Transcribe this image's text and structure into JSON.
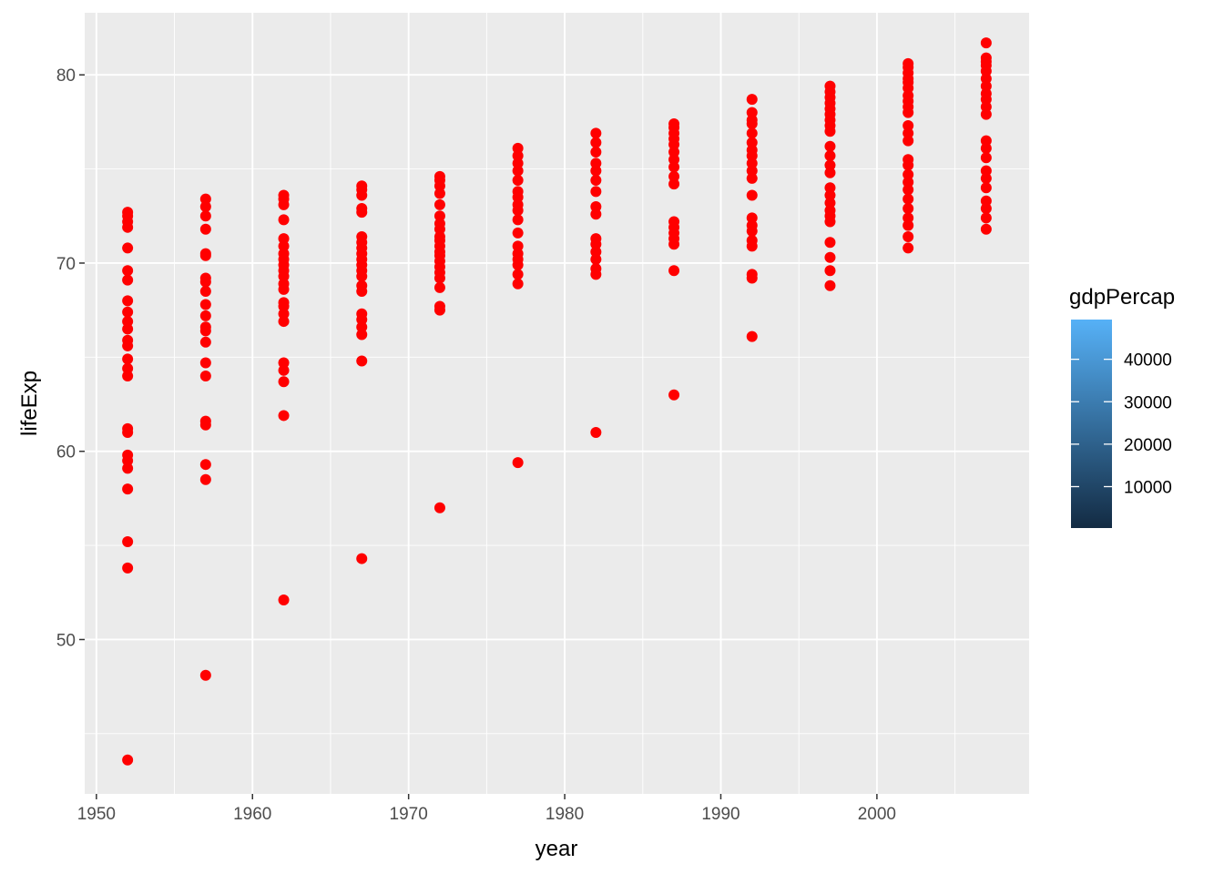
{
  "chart_data": {
    "type": "scatter",
    "title": "",
    "xlabel": "year",
    "ylabel": "lifeExp",
    "xlim": [
      1949.25,
      2009.75
    ],
    "ylim": [
      41.8,
      83.3
    ],
    "x_ticks": [
      1950,
      1960,
      1970,
      1980,
      1990,
      2000
    ],
    "y_ticks": [
      50,
      60,
      70,
      80
    ],
    "grid": true,
    "point_color": "#ff0000",
    "panel_background": "#ebebeb",
    "gridline_color": "#ffffff",
    "series": [
      {
        "x": 1952,
        "y": [
          43.6,
          53.8,
          55.2,
          58.0,
          59.1,
          59.5,
          59.8,
          61.0,
          61.2,
          64.0,
          64.4,
          64.9,
          65.6,
          65.9,
          66.5,
          66.9,
          67.4,
          68.0,
          69.1,
          69.6,
          70.8,
          71.9,
          72.2,
          72.5,
          72.7
        ]
      },
      {
        "x": 1957,
        "y": [
          48.1,
          58.5,
          59.3,
          61.4,
          61.6,
          64.0,
          64.7,
          65.8,
          66.4,
          66.6,
          67.2,
          67.8,
          68.5,
          69.0,
          69.2,
          70.4,
          70.5,
          71.8,
          72.5,
          73.0,
          73.4
        ]
      },
      {
        "x": 1962,
        "y": [
          52.1,
          61.9,
          63.7,
          64.3,
          64.7,
          66.9,
          67.3,
          67.7,
          67.9,
          68.6,
          68.9,
          69.3,
          69.6,
          69.9,
          70.2,
          70.5,
          70.9,
          71.3,
          72.3,
          73.1,
          73.4,
          73.6
        ]
      },
      {
        "x": 1967,
        "y": [
          54.3,
          64.8,
          66.2,
          66.6,
          67.0,
          67.3,
          68.5,
          68.8,
          69.3,
          69.6,
          69.9,
          70.2,
          70.5,
          70.8,
          71.1,
          71.4,
          72.7,
          72.9,
          73.6,
          73.9,
          74.1
        ]
      },
      {
        "x": 1972,
        "y": [
          57.0,
          67.5,
          67.7,
          68.7,
          69.2,
          69.5,
          69.8,
          70.1,
          70.4,
          70.6,
          70.9,
          71.2,
          71.4,
          71.8,
          72.1,
          72.5,
          73.1,
          73.7,
          74.1,
          74.4,
          74.6
        ]
      },
      {
        "x": 1977,
        "y": [
          59.4,
          68.9,
          69.4,
          69.9,
          70.2,
          70.5,
          70.9,
          71.6,
          72.3,
          72.8,
          73.1,
          73.5,
          73.8,
          74.4,
          74.9,
          75.3,
          75.7,
          76.1
        ]
      },
      {
        "x": 1982,
        "y": [
          61.0,
          69.4,
          69.7,
          70.2,
          70.6,
          71.0,
          71.3,
          72.6,
          73.0,
          73.8,
          74.4,
          74.9,
          75.3,
          75.9,
          76.4,
          76.9
        ]
      },
      {
        "x": 1987,
        "y": [
          63.0,
          69.6,
          71.0,
          71.3,
          71.6,
          71.9,
          72.2,
          74.2,
          74.6,
          75.1,
          75.5,
          75.9,
          76.3,
          76.6,
          76.9,
          77.2,
          77.4
        ]
      },
      {
        "x": 1992,
        "y": [
          66.1,
          69.2,
          69.4,
          70.9,
          71.2,
          71.7,
          72.0,
          72.4,
          73.6,
          74.5,
          74.9,
          75.3,
          75.7,
          76.0,
          76.4,
          76.9,
          77.4,
          77.6,
          78.0,
          78.7
        ]
      },
      {
        "x": 1997,
        "y": [
          68.8,
          69.6,
          70.3,
          71.1,
          72.2,
          72.5,
          72.8,
          73.2,
          73.6,
          74.0,
          74.8,
          75.2,
          75.7,
          76.2,
          77.0,
          77.3,
          77.6,
          77.9,
          78.2,
          78.5,
          78.8,
          79.1,
          79.4
        ]
      },
      {
        "x": 2002,
        "y": [
          70.8,
          71.4,
          72.0,
          72.4,
          72.9,
          73.4,
          73.9,
          74.3,
          74.7,
          75.2,
          75.5,
          76.5,
          76.9,
          77.3,
          78.0,
          78.3,
          78.6,
          78.9,
          79.3,
          79.6,
          79.8,
          80.1,
          80.4,
          80.6
        ]
      },
      {
        "x": 2007,
        "y": [
          71.8,
          72.4,
          72.9,
          73.3,
          74.0,
          74.5,
          74.9,
          75.6,
          76.1,
          76.5,
          77.9,
          78.3,
          78.7,
          79.0,
          79.4,
          79.8,
          80.2,
          80.5,
          80.7,
          80.9,
          81.7
        ]
      }
    ],
    "legend": {
      "title": "gdpPercap",
      "position": "right",
      "type": "colorbar",
      "range": [
        241,
        49357
      ],
      "ticks": [
        10000,
        20000,
        30000,
        40000
      ],
      "color_low": "#132b43",
      "color_high": "#56b1f7"
    }
  }
}
